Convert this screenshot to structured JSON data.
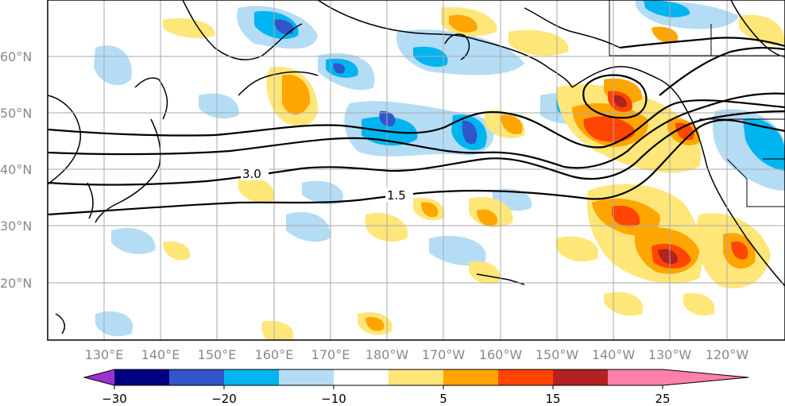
{
  "map": {
    "lon_labels": [
      "130°E",
      "140°E",
      "150°E",
      "160°E",
      "170°E",
      "180°W",
      "170°W",
      "160°W",
      "150°W",
      "140°W",
      "130°W",
      "120°W"
    ],
    "lat_labels": [
      "60°N",
      "50°N",
      "40°N",
      "30°N",
      "20°N"
    ],
    "contour_labels": [
      "3.0",
      "1.5"
    ]
  },
  "colorbar": {
    "colors": [
      "#9933cc",
      "#000080",
      "#3355cc",
      "#00b4f0",
      "#b4dcf5",
      "#ffffff",
      "#ffe678",
      "#ffa500",
      "#ff4500",
      "#b22222",
      "#ff80a8"
    ],
    "tick_labels": [
      "−30",
      "−20",
      "−10",
      "5",
      "15",
      "25"
    ]
  },
  "anomaly_colors": {
    "blue_deep": "#3355cc",
    "blue_mid": "#00b4f0",
    "blue_light": "#b4dcf5",
    "yellow": "#ffe678",
    "orange": "#ffa500",
    "red": "#ff4500",
    "dark_red": "#b22222"
  }
}
